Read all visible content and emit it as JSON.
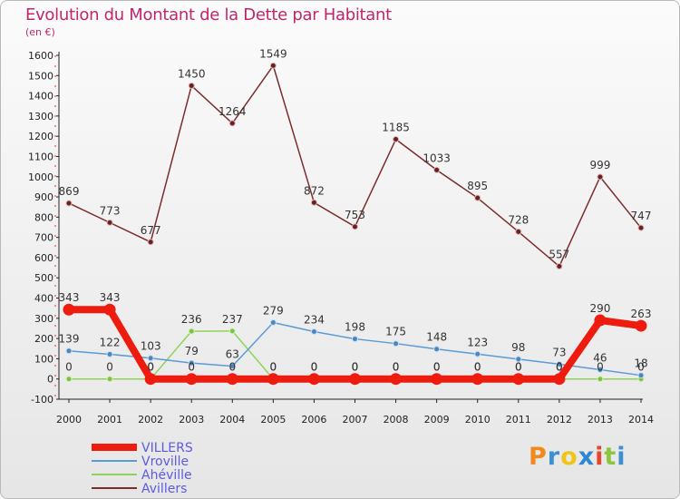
{
  "header": {
    "title": "Evolution du Montant de la Dette par Habitant",
    "subtitle": "(en €)"
  },
  "logo": {
    "text": "Proxiti"
  },
  "chart_data": {
    "type": "line",
    "title": "Evolution du Montant de la Dette par Habitant",
    "subtitle": "(en €)",
    "xlabel": "",
    "ylabel": "",
    "ylim": [
      -100,
      1600
    ],
    "yticks": [
      -100,
      0,
      100,
      200,
      300,
      400,
      500,
      600,
      700,
      800,
      900,
      1000,
      1100,
      1200,
      1300,
      1400,
      1500,
      1600
    ],
    "categories": [
      "2000",
      "2001",
      "2002",
      "2003",
      "2004",
      "2005",
      "2006",
      "2007",
      "2008",
      "2009",
      "2010",
      "2011",
      "2012",
      "2013",
      "2014"
    ],
    "grid": false,
    "legend_position": "bottom-left",
    "series": [
      {
        "name": "VILLERS",
        "color": "#ee1c0e",
        "values": [
          343,
          343,
          0,
          0,
          0,
          0,
          0,
          0,
          0,
          0,
          0,
          0,
          0,
          290,
          263
        ]
      },
      {
        "name": "Vroville",
        "color": "#5b9bd5",
        "values": [
          139,
          122,
          103,
          79,
          63,
          279,
          234,
          198,
          175,
          148,
          123,
          98,
          73,
          46,
          18
        ]
      },
      {
        "name": "Ahéville",
        "color": "#8fd35a",
        "values": [
          0,
          0,
          0,
          236,
          237,
          0,
          0,
          0,
          0,
          0,
          0,
          0,
          0,
          0,
          0
        ]
      },
      {
        "name": "Avillers",
        "color": "#7b2d2d",
        "values": [
          869,
          773,
          677,
          1450,
          1264,
          1549,
          872,
          753,
          1185,
          1033,
          895,
          728,
          557,
          999,
          747
        ]
      }
    ],
    "data_labels": [
      {
        "series": "VILLERS",
        "labels": [
          "343",
          "343",
          "0",
          "0",
          "0",
          "0",
          "0",
          "0",
          "0",
          "0",
          "0",
          "0",
          "0",
          "290",
          "263"
        ]
      },
      {
        "series": "Vroville",
        "labels": [
          "139",
          "122",
          "103",
          "79",
          "63",
          "279",
          "234",
          "198",
          "175",
          "148",
          "123",
          "98",
          "73",
          "46",
          "18"
        ]
      },
      {
        "series": "Ahéville",
        "labels": [
          "0",
          "0",
          "0",
          "236",
          "237",
          "0",
          "0",
          "0",
          "0",
          "0",
          "0",
          "0",
          "0",
          "0",
          "0"
        ]
      },
      {
        "series": "Avillers",
        "labels": [
          "869",
          "773",
          "677",
          "1450",
          "1264",
          "1549",
          "872",
          "753",
          "1185",
          "1033",
          "895",
          "728",
          "557",
          "999",
          "747"
        ]
      }
    ]
  }
}
